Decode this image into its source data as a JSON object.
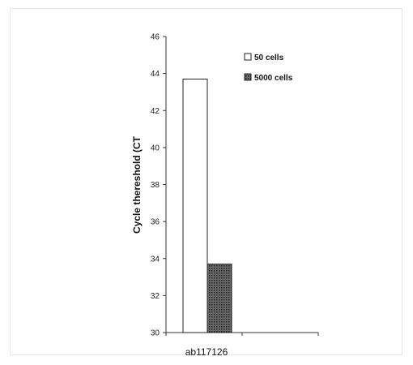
{
  "chart_data": {
    "type": "bar",
    "categories": [
      "ab117126"
    ],
    "series": [
      {
        "name": "50 cells",
        "values": [
          43.7
        ],
        "color": "#ffffff"
      },
      {
        "name": "5000 cells",
        "values": [
          33.7
        ],
        "color": "#3a3a3a"
      }
    ],
    "ylabel": "Cycle thereshold (CT",
    "xlabel": "",
    "ylim": [
      30,
      46
    ],
    "yticks": [
      30,
      32,
      34,
      36,
      38,
      40,
      42,
      44,
      46
    ],
    "grid": false,
    "legend_position": "top-right"
  }
}
